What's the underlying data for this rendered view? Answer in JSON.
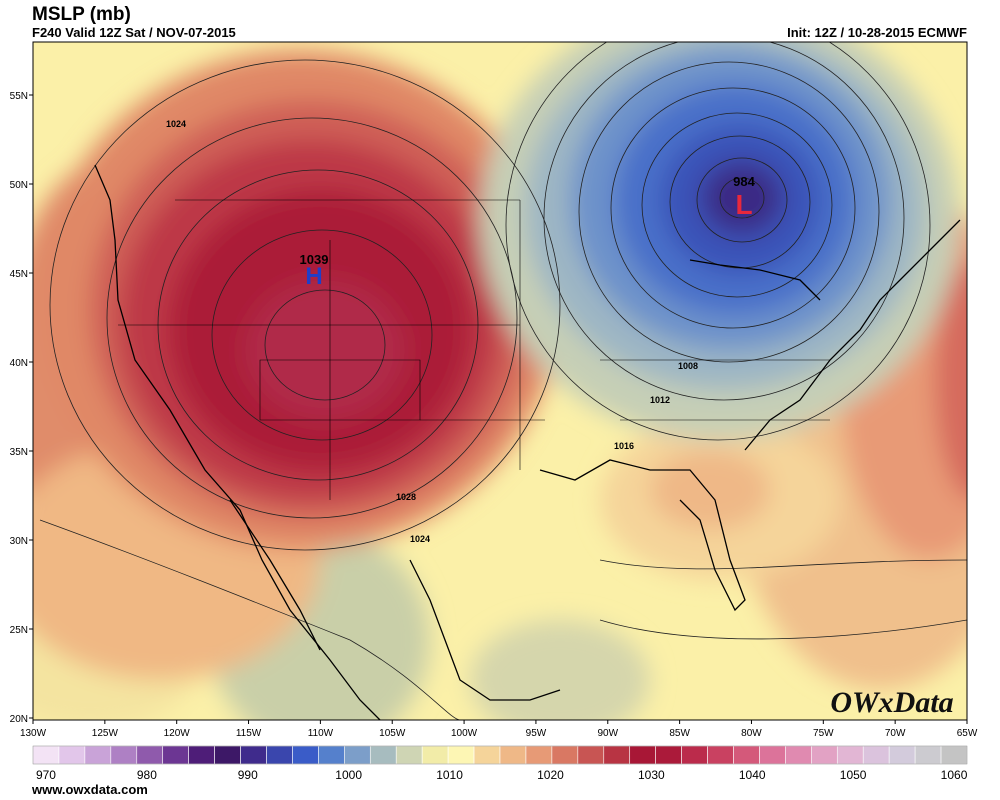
{
  "header": {
    "title": "MSLP (mb)",
    "valid": "F240 Valid 12Z Sat / NOV-07-2015",
    "init": "Init: 12Z / 10-28-2015 ECMWF"
  },
  "footer": {
    "url": "www.owxdata.com"
  },
  "watermark": "OWxData",
  "axes": {
    "longitudes": [
      "130W",
      "125W",
      "120W",
      "115W",
      "110W",
      "105W",
      "100W",
      "95W",
      "90W",
      "85W",
      "80W",
      "75W",
      "70W",
      "65W"
    ],
    "latitudes": [
      "55N",
      "50N",
      "45N",
      "40N",
      "35N",
      "30N",
      "25N",
      "20N"
    ]
  },
  "centers": {
    "high": {
      "letter": "H",
      "value": "1039",
      "color": "#1f3ec8"
    },
    "low": {
      "letter": "L",
      "value": "984",
      "color": "#e8283c"
    }
  },
  "isobar_labels": [
    "1024",
    "1028",
    "1024",
    "1008",
    "1012",
    "1016"
  ],
  "legend": {
    "labels": [
      "970",
      "980",
      "990",
      "1000",
      "1010",
      "1020",
      "1030",
      "1040",
      "1050",
      "1060"
    ],
    "colors": [
      "#f3e3f5",
      "#e2c6ea",
      "#c9a3d8",
      "#ae80c4",
      "#8f5aac",
      "#6c3693",
      "#4e1d78",
      "#3d1867",
      "#3f2b8c",
      "#3a46ad",
      "#3a5cc8",
      "#5580cc",
      "#7c9ec9",
      "#a7bcbf",
      "#cfd5b4",
      "#f2eca8",
      "#fdf6b4",
      "#f5d49a",
      "#efb887",
      "#e79a76",
      "#d97863",
      "#c85553",
      "#b83443",
      "#a81736",
      "#ab1a3a",
      "#bb2b4b",
      "#c94161",
      "#d4597a",
      "#dc739a",
      "#e08ab0",
      "#e2a2c4",
      "#e2b6d4",
      "#dbc3dd",
      "#d3cbdc",
      "#cccbd0",
      "#c4c4c4"
    ]
  }
}
